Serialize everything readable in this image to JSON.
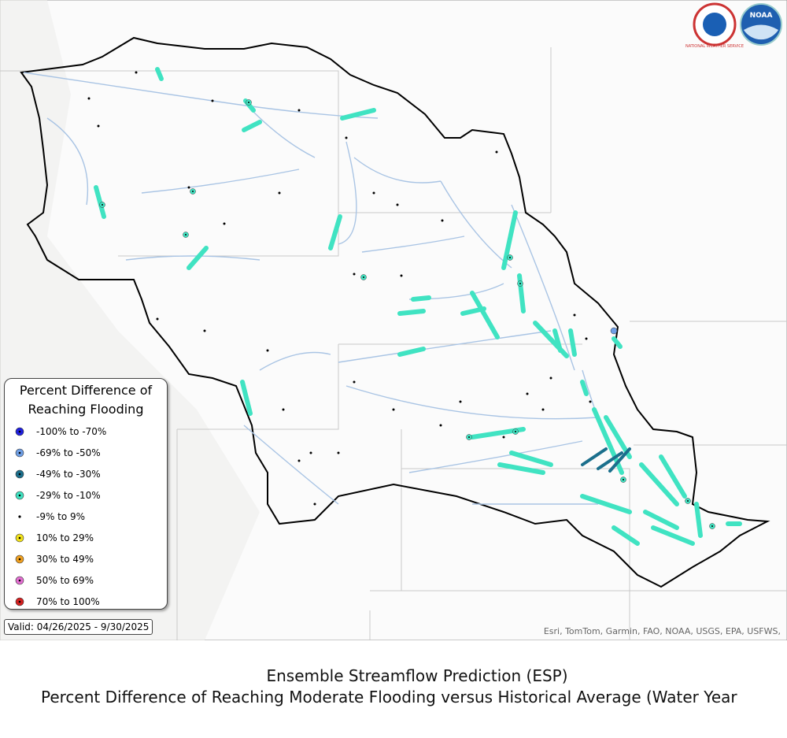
{
  "logos": {
    "nws": "NATIONAL WEATHER SERVICE",
    "noaa": "NOAA"
  },
  "legend": {
    "title": "Percent Difference of Reaching Flooding",
    "items": [
      {
        "label": "-100% to -70%",
        "color": "#1f1fe0",
        "marker": "circle"
      },
      {
        "label": "-69% to -50%",
        "color": "#6f9fe6",
        "marker": "circle"
      },
      {
        "label": "-49% to -30%",
        "color": "#1b6f8c",
        "marker": "circle"
      },
      {
        "label": "-29% to -10%",
        "color": "#40e3c2",
        "marker": "circle"
      },
      {
        "label": "-9% to 9%",
        "color": "#000000",
        "marker": "dot"
      },
      {
        "label": "10% to 29%",
        "color": "#f2e21a",
        "marker": "circle"
      },
      {
        "label": "30% to 49%",
        "color": "#f0a020",
        "marker": "circle"
      },
      {
        "label": "50% to 69%",
        "color": "#e46fd2",
        "marker": "circle"
      },
      {
        "label": "70% to 100%",
        "color": "#d42020",
        "marker": "circle"
      }
    ]
  },
  "valid": "Valid: 04/26/2025 - 9/30/2025",
  "attribution": "Esri, TomTom, Garmin, FAO, NOAA, USGS, EPA, USFWS,",
  "caption": {
    "line1": "Ensemble Streamflow Prediction (ESP)",
    "line2": "Percent Difference of Reaching Moderate Flooding versus Historical Average (Water Year"
  }
}
